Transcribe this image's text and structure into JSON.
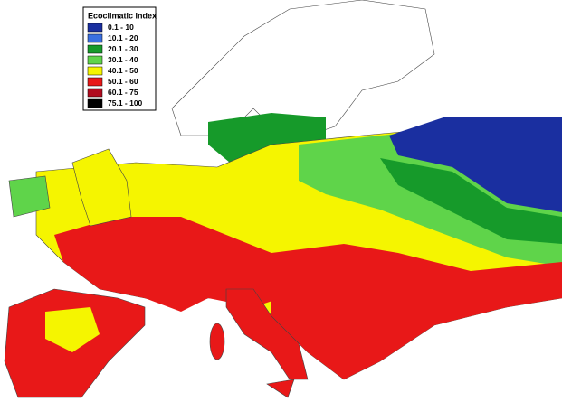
{
  "legend": {
    "title": "Ecoclimatic Index",
    "items": [
      {
        "label": "0.1 - 10",
        "color": "#1a2fa0"
      },
      {
        "label": "10.1 - 20",
        "color": "#3a6fe0"
      },
      {
        "label": "20.1 - 30",
        "color": "#169a2a"
      },
      {
        "label": "30.1 - 40",
        "color": "#5fd44a"
      },
      {
        "label": "40.1 - 50",
        "color": "#f5f500"
      },
      {
        "label": "50.1 - 60",
        "color": "#e81818"
      },
      {
        "label": "60.1 - 75",
        "color": "#b00a1e"
      },
      {
        "label": "75.1 - 100",
        "color": "#000000"
      }
    ]
  }
}
